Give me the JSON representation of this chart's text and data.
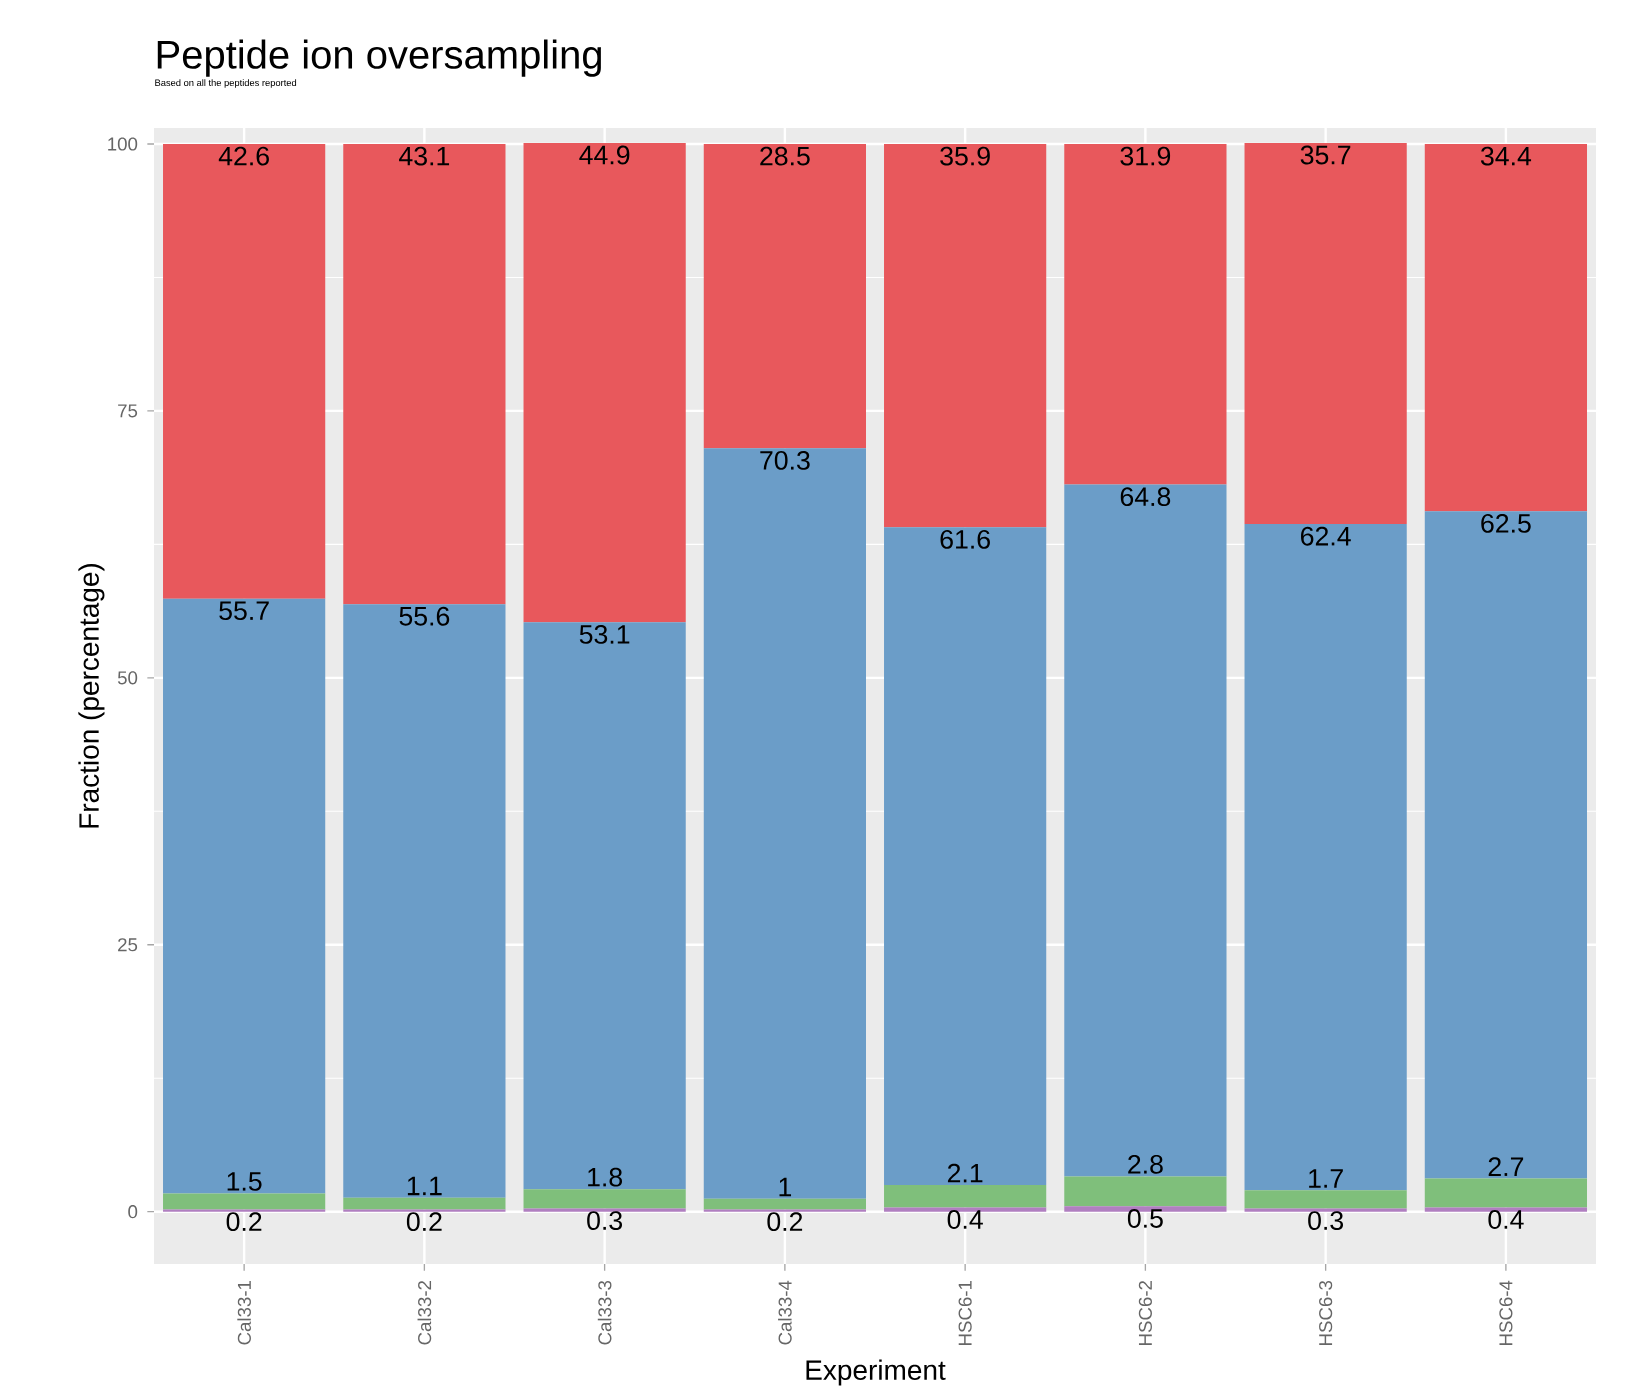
{
  "chart_data": {
    "type": "bar",
    "title": "Peptide ion oversampling",
    "subtitle": "Based on all the peptides reported",
    "xlabel": "Experiment",
    "ylabel": "Fraction (percentage)",
    "categories": [
      "Cal33-1",
      "Cal33-2",
      "Cal33-3",
      "Cal33-4",
      "HSC6-1",
      "HSC6-2",
      "HSC6-3",
      "HSC6-4"
    ],
    "stacked": true,
    "data_labels": true,
    "grid": true,
    "ylim": [
      -4.9,
      101.5
    ],
    "yticks": [
      0,
      25,
      50,
      75,
      100
    ],
    "series": [
      {
        "color": "#b07fc0",
        "values": [
          0.2,
          0.2,
          0.3,
          0.2,
          0.4,
          0.5,
          0.3,
          0.4
        ]
      },
      {
        "color": "#7fbf7b",
        "values": [
          1.5,
          1.1,
          1.8,
          1,
          2.1,
          2.8,
          1.7,
          2.7
        ]
      },
      {
        "color": "#6b9dc8",
        "values": [
          55.7,
          55.6,
          53.1,
          70.3,
          61.6,
          64.8,
          62.4,
          62.5
        ]
      },
      {
        "color": "#e8585c",
        "values": [
          42.6,
          43.1,
          44.9,
          28.5,
          35.9,
          31.9,
          35.7,
          34.4
        ]
      }
    ]
  }
}
